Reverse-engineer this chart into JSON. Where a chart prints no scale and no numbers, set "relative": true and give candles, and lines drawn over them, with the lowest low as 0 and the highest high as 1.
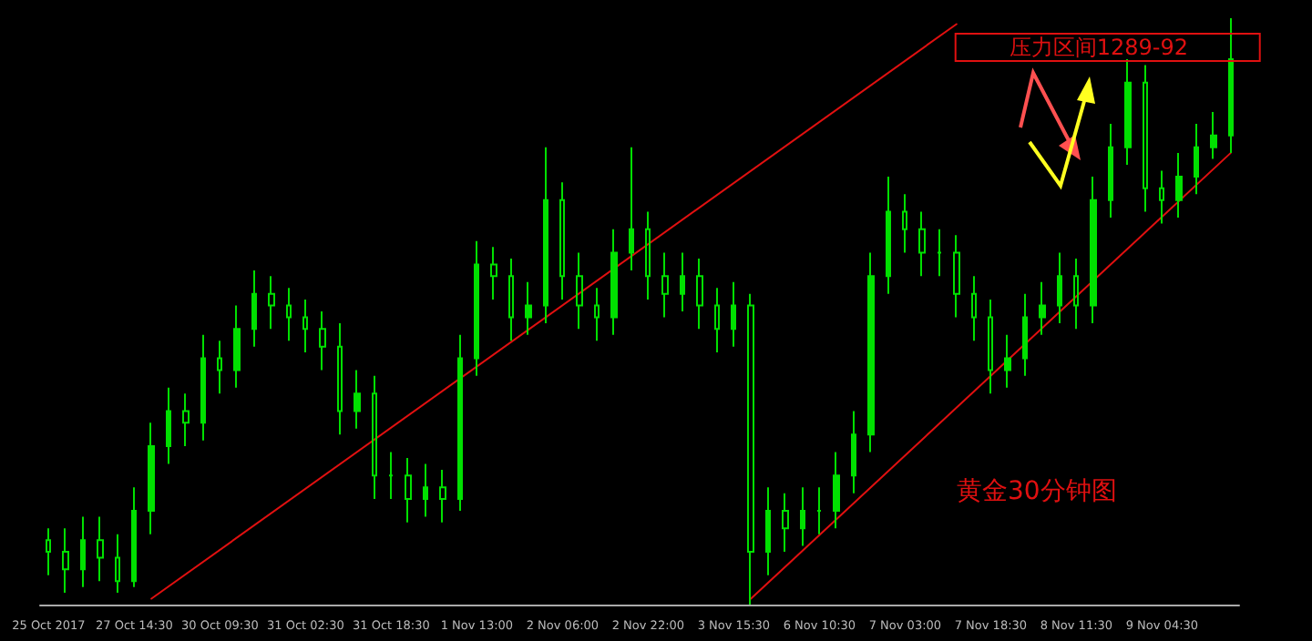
{
  "chart_data": {
    "type": "candlestick",
    "relative": true,
    "grid": false,
    "categories": [
      "25 Oct 2017",
      null,
      null,
      null,
      null,
      "27 Oct 14:30",
      null,
      null,
      null,
      null,
      "30 Oct 09:30",
      null,
      null,
      null,
      null,
      "31 Oct 02:30",
      null,
      null,
      null,
      null,
      "31 Oct 18:30",
      null,
      null,
      null,
      null,
      "1 Nov 13:00",
      null,
      null,
      null,
      null,
      "2 Nov 06:00",
      null,
      null,
      null,
      null,
      "2 Nov 22:00",
      null,
      null,
      null,
      null,
      "3 Nov 15:30",
      null,
      null,
      null,
      null,
      "6 Nov 10:30",
      null,
      null,
      null,
      null,
      "7 Nov 03:00",
      null,
      null,
      null,
      null,
      "7 Nov 18:30",
      null,
      null,
      null,
      null,
      "8 Nov 11:30",
      null,
      null,
      null,
      null,
      "9 Nov 04:30",
      null,
      null,
      null,
      null
    ],
    "color": "#00e000",
    "ohlc": [
      [
        0.11,
        0.13,
        0.05,
        0.09
      ],
      [
        0.09,
        0.13,
        0.02,
        0.06
      ],
      [
        0.06,
        0.15,
        0.03,
        0.11
      ],
      [
        0.11,
        0.15,
        0.04,
        0.08
      ],
      [
        0.08,
        0.12,
        0.02,
        0.04
      ],
      [
        0.04,
        0.2,
        0.03,
        0.16
      ],
      [
        0.16,
        0.31,
        0.12,
        0.27
      ],
      [
        0.27,
        0.37,
        0.24,
        0.33
      ],
      [
        0.33,
        0.36,
        0.27,
        0.31
      ],
      [
        0.31,
        0.46,
        0.28,
        0.42
      ],
      [
        0.42,
        0.45,
        0.36,
        0.4
      ],
      [
        0.4,
        0.51,
        0.37,
        0.47
      ],
      [
        0.47,
        0.57,
        0.44,
        0.53
      ],
      [
        0.53,
        0.56,
        0.47,
        0.51
      ],
      [
        0.51,
        0.54,
        0.45,
        0.49
      ],
      [
        0.49,
        0.52,
        0.43,
        0.47
      ],
      [
        0.47,
        0.5,
        0.4,
        0.44
      ],
      [
        0.44,
        0.48,
        0.29,
        0.33
      ],
      [
        0.33,
        0.4,
        0.3,
        0.36
      ],
      [
        0.36,
        0.39,
        0.18,
        0.22
      ],
      [
        0.22,
        0.26,
        0.18,
        0.22
      ],
      [
        0.22,
        0.25,
        0.14,
        0.18
      ],
      [
        0.18,
        0.24,
        0.15,
        0.2
      ],
      [
        0.2,
        0.23,
        0.14,
        0.18
      ],
      [
        0.18,
        0.46,
        0.16,
        0.42
      ],
      [
        0.42,
        0.62,
        0.39,
        0.58
      ],
      [
        0.58,
        0.61,
        0.52,
        0.56
      ],
      [
        0.56,
        0.59,
        0.45,
        0.49
      ],
      [
        0.49,
        0.55,
        0.46,
        0.51
      ],
      [
        0.51,
        0.78,
        0.48,
        0.69
      ],
      [
        0.69,
        0.72,
        0.52,
        0.56
      ],
      [
        0.56,
        0.6,
        0.47,
        0.51
      ],
      [
        0.51,
        0.54,
        0.45,
        0.49
      ],
      [
        0.49,
        0.64,
        0.46,
        0.6
      ],
      [
        0.6,
        0.78,
        0.57,
        0.64
      ],
      [
        0.64,
        0.67,
        0.52,
        0.56
      ],
      [
        0.56,
        0.6,
        0.49,
        0.53
      ],
      [
        0.53,
        0.6,
        0.5,
        0.56
      ],
      [
        0.56,
        0.59,
        0.47,
        0.51
      ],
      [
        0.51,
        0.54,
        0.43,
        0.47
      ],
      [
        0.47,
        0.55,
        0.44,
        0.51
      ],
      [
        0.51,
        0.53,
        0,
        0.09
      ],
      [
        0.09,
        0.2,
        0.05,
        0.16
      ],
      [
        0.16,
        0.19,
        0.09,
        0.13
      ],
      [
        0.13,
        0.2,
        0.1,
        0.16
      ],
      [
        0.16,
        0.2,
        0.12,
        0.16
      ],
      [
        0.16,
        0.26,
        0.13,
        0.22
      ],
      [
        0.22,
        0.33,
        0.19,
        0.29
      ],
      [
        0.29,
        0.6,
        0.26,
        0.56
      ],
      [
        0.56,
        0.73,
        0.53,
        0.67
      ],
      [
        0.67,
        0.7,
        0.6,
        0.64
      ],
      [
        0.64,
        0.67,
        0.56,
        0.6
      ],
      [
        0.6,
        0.64,
        0.56,
        0.6
      ],
      [
        0.6,
        0.63,
        0.49,
        0.53
      ],
      [
        0.53,
        0.56,
        0.45,
        0.49
      ],
      [
        0.49,
        0.52,
        0.36,
        0.4
      ],
      [
        0.4,
        0.46,
        0.37,
        0.42
      ],
      [
        0.42,
        0.53,
        0.39,
        0.49
      ],
      [
        0.49,
        0.55,
        0.46,
        0.51
      ],
      [
        0.51,
        0.6,
        0.48,
        0.56
      ],
      [
        0.56,
        0.59,
        0.47,
        0.51
      ],
      [
        0.51,
        0.73,
        0.48,
        0.69
      ],
      [
        0.69,
        0.82,
        0.66,
        0.78
      ],
      [
        0.78,
        0.93,
        0.75,
        0.89
      ],
      [
        0.89,
        0.92,
        0.67,
        0.71
      ],
      [
        0.71,
        0.74,
        0.65,
        0.69
      ],
      [
        0.69,
        0.77,
        0.66,
        0.73
      ],
      [
        0.73,
        0.82,
        0.7,
        0.78
      ],
      [
        0.78,
        0.84,
        0.76,
        0.8
      ],
      [
        0.8,
        1,
        0.77,
        0.93
      ]
    ],
    "series": [
      {
        "type": "line",
        "color": "#e01010",
        "values": [
          null,
          null,
          null,
          null,
          null,
          null,
          0.01,
          null,
          null,
          null,
          null,
          null,
          null,
          null,
          null,
          null,
          null,
          null,
          null,
          null,
          null,
          null,
          null,
          null,
          null,
          null,
          null,
          null,
          null,
          null,
          null,
          null,
          null,
          null,
          null,
          null,
          null,
          null,
          null,
          null,
          null,
          null,
          null,
          null,
          null,
          null,
          null,
          null,
          null,
          null,
          null,
          null,
          null,
          0.99,
          null,
          null,
          null,
          null,
          null,
          null,
          null,
          null,
          null,
          null,
          null,
          null,
          null,
          null,
          null,
          null
        ]
      },
      {
        "type": "line",
        "color": "#e01010",
        "values": [
          null,
          null,
          null,
          null,
          null,
          null,
          null,
          null,
          null,
          null,
          null,
          null,
          null,
          null,
          null,
          null,
          null,
          null,
          null,
          null,
          null,
          null,
          null,
          null,
          null,
          null,
          null,
          null,
          null,
          null,
          null,
          null,
          null,
          null,
          null,
          null,
          null,
          null,
          null,
          null,
          null,
          0.01,
          null,
          null,
          null,
          null,
          null,
          null,
          null,
          null,
          null,
          null,
          null,
          null,
          null,
          null,
          null,
          null,
          null,
          null,
          null,
          null,
          null,
          null,
          null,
          null,
          null,
          null,
          null,
          0.77
        ]
      }
    ],
    "annotations": [
      "压力区间1289-92",
      "黄金30分钟图"
    ]
  }
}
